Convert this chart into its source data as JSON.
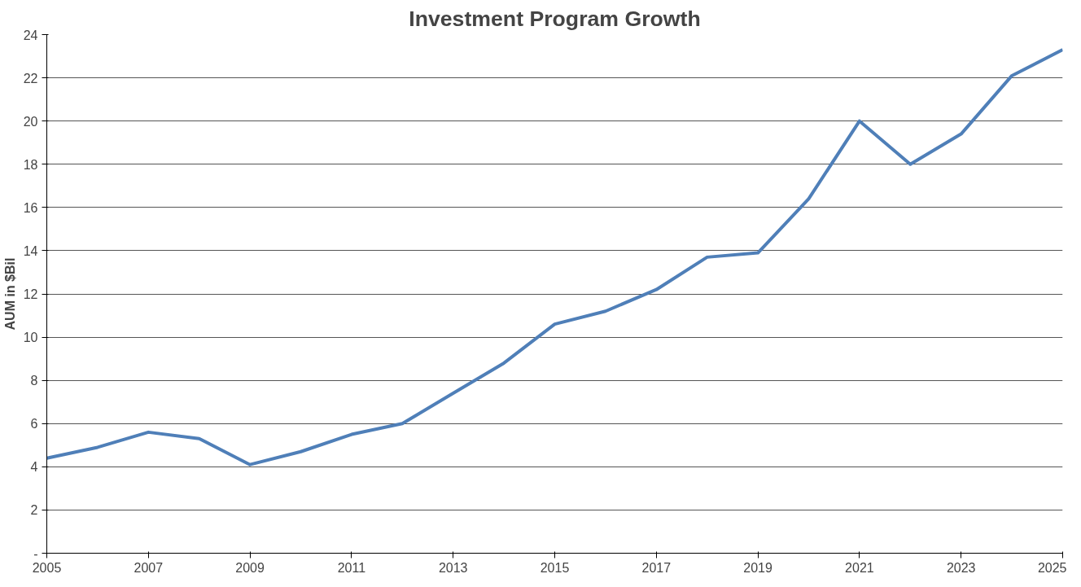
{
  "chart_data": {
    "type": "line",
    "title": "Investment Program Growth",
    "ylabel": "AUM in $Bil",
    "x": [
      2005,
      2006,
      2007,
      2008,
      2009,
      2010,
      2011,
      2012,
      2013,
      2014,
      2015,
      2016,
      2017,
      2018,
      2019,
      2020,
      2021,
      2022,
      2023,
      2024,
      2025
    ],
    "series": [
      {
        "color": "#4f7fb8",
        "values": [
          4.4,
          4.9,
          5.6,
          5.3,
          4.1,
          4.7,
          5.5,
          6.0,
          7.4,
          8.8,
          10.6,
          11.2,
          12.2,
          13.7,
          13.9,
          16.4,
          20.0,
          18.0,
          19.4,
          22.1,
          23.3
        ]
      }
    ],
    "xlim": [
      2005,
      2025
    ],
    "xticks": [
      2005,
      2007,
      2009,
      2011,
      2013,
      2015,
      2017,
      2019,
      2021,
      2023,
      2025
    ],
    "ylim": [
      0,
      24
    ],
    "yticks": [
      {
        "value": 0,
        "label": "-"
      },
      2,
      4,
      6,
      8,
      10,
      12,
      14,
      16,
      18,
      20,
      22,
      24
    ],
    "grid": "y",
    "line_style": "solid"
  }
}
